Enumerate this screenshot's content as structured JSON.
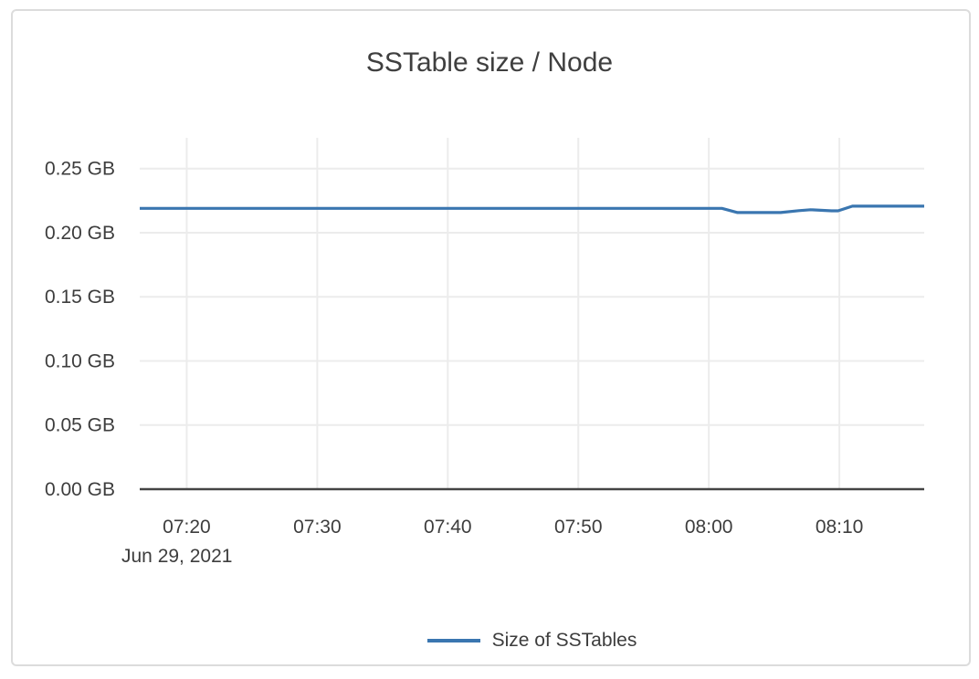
{
  "card": {
    "background": "#ffffff",
    "border_color": "#dcdcdc"
  },
  "chart_data": {
    "type": "line",
    "title": "SSTable size / Node",
    "grid": true,
    "legend_position": "bottom-center",
    "x_axis": {
      "date_label": "Jun 29, 2021",
      "ticks": [
        {
          "minute": 20,
          "label": "07:20"
        },
        {
          "minute": 30,
          "label": "07:30"
        },
        {
          "minute": 40,
          "label": "07:40"
        },
        {
          "minute": 50,
          "label": "07:50"
        },
        {
          "minute": 60,
          "label": "08:00"
        },
        {
          "minute": 70,
          "label": "08:10"
        }
      ],
      "range_minutes_after_0700": [
        16.4,
        76.5
      ]
    },
    "y_axis": {
      "unit": "GB",
      "ticks": [
        {
          "value": 0.0,
          "label": "0.00 GB"
        },
        {
          "value": 0.05,
          "label": "0.05 GB"
        },
        {
          "value": 0.1,
          "label": "0.10 GB"
        },
        {
          "value": 0.15,
          "label": "0.15 GB"
        },
        {
          "value": 0.2,
          "label": "0.20 GB"
        },
        {
          "value": 0.25,
          "label": "0.25 GB"
        }
      ],
      "range": [
        0,
        0.274
      ]
    },
    "series": [
      {
        "name": "Size of SSTables",
        "color": "#3a76b0",
        "points": [
          {
            "minute": 16.4,
            "gb": 0.219
          },
          {
            "minute": 30.0,
            "gb": 0.219
          },
          {
            "minute": 45.0,
            "gb": 0.219
          },
          {
            "minute": 61.0,
            "gb": 0.219
          },
          {
            "minute": 62.2,
            "gb": 0.2157
          },
          {
            "minute": 65.5,
            "gb": 0.2157
          },
          {
            "minute": 66.9,
            "gb": 0.2172
          },
          {
            "minute": 67.8,
            "gb": 0.2179
          },
          {
            "minute": 69.4,
            "gb": 0.2171
          },
          {
            "minute": 69.9,
            "gb": 0.2171
          },
          {
            "minute": 71.0,
            "gb": 0.2207
          },
          {
            "minute": 76.5,
            "gb": 0.2207
          }
        ]
      }
    ],
    "colors": {
      "grid": "#ececec",
      "axis_line": "#444444",
      "tick_text": "#3d3d3d",
      "title_text": "#3f3f3f",
      "series_line": "#3a76b0"
    }
  }
}
